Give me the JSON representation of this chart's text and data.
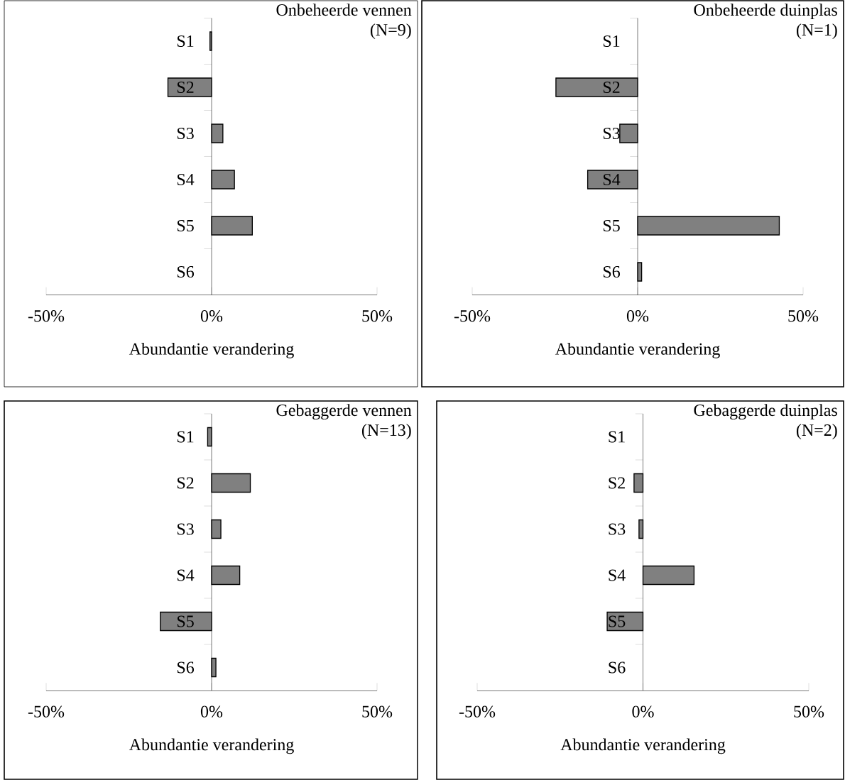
{
  "chart_data": [
    {
      "type": "bar",
      "orientation": "horizontal",
      "title": "Onbeheerde vennen",
      "subtitle": "(N=9)",
      "categories": [
        "S1",
        "S2",
        "S3",
        "S4",
        "S5",
        "S6"
      ],
      "values": [
        -0.5,
        -13.2,
        3.4,
        6.9,
        12.3,
        null
      ],
      "color": "#808080",
      "xlabel": "Abundantie verandering",
      "xlim": [
        -50,
        50
      ],
      "xticks": [
        {
          "value": -50,
          "label": "-50%"
        },
        {
          "value": 0,
          "label": "0%"
        },
        {
          "value": 50,
          "label": "50%"
        }
      ]
    },
    {
      "type": "bar",
      "orientation": "horizontal",
      "title": "Onbeheerde duinplas",
      "subtitle": "(N=1)",
      "categories": [
        "S1",
        "S2",
        "S3",
        "S4",
        "S5",
        "S6"
      ],
      "values": [
        null,
        -24.7,
        -5.4,
        -15.1,
        42.8,
        1.2
      ],
      "color": "#808080",
      "xlabel": "Abundantie verandering",
      "xlim": [
        -50,
        50
      ],
      "xticks": [
        {
          "value": -50,
          "label": "-50%"
        },
        {
          "value": 0,
          "label": "0%"
        },
        {
          "value": 50,
          "label": "50%"
        }
      ]
    },
    {
      "type": "bar",
      "orientation": "horizontal",
      "title": "Gebaggerde vennen",
      "subtitle": "(N=13)",
      "categories": [
        "S1",
        "S2",
        "S3",
        "S4",
        "S5",
        "S6"
      ],
      "values": [
        -1.2,
        11.7,
        2.8,
        8.5,
        -15.5,
        1.3
      ],
      "color": "#808080",
      "xlabel": "Abundantie verandering",
      "xlim": [
        -50,
        50
      ],
      "xticks": [
        {
          "value": -50,
          "label": "-50%"
        },
        {
          "value": 0,
          "label": "0%"
        },
        {
          "value": 50,
          "label": "50%"
        }
      ]
    },
    {
      "type": "bar",
      "orientation": "horizontal",
      "title": "Gebaggerde duinplas",
      "subtitle": "(N=2)",
      "categories": [
        "S1",
        "S2",
        "S3",
        "S4",
        "S5",
        "S6"
      ],
      "values": [
        null,
        -2.7,
        -1.2,
        15.4,
        -10.8,
        null
      ],
      "color": "#808080",
      "xlabel": "Abundantie verandering",
      "xlim": [
        -50,
        50
      ],
      "xticks": [
        {
          "value": -50,
          "label": "-50%"
        },
        {
          "value": 0,
          "label": "0%"
        },
        {
          "value": 50,
          "label": "50%"
        }
      ]
    }
  ]
}
